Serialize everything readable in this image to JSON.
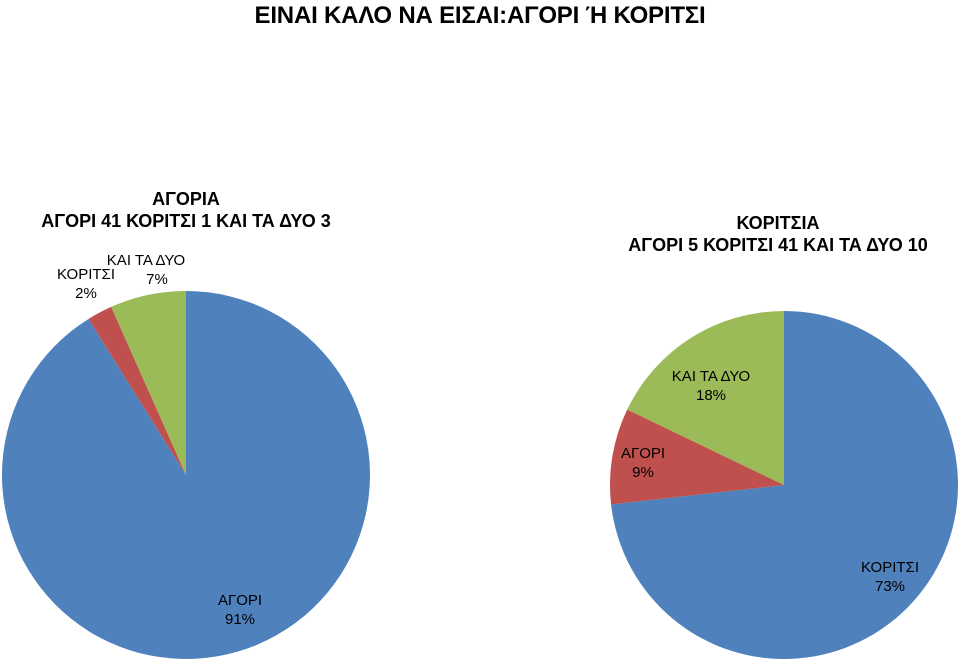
{
  "title": "ΕΙΝΑΙ ΚΑΛΟ ΝΑ ΕΙΣΑΙ:ΑΓΟΡΙ Ή ΚΟΡΙΤΣΙ",
  "colors": {
    "blue": "#4f81bd",
    "red": "#c0504d",
    "green": "#9bbb59"
  },
  "chart_data": [
    {
      "type": "pie",
      "title_line1": "ΑΓΟΡΙΑ",
      "title_line2": "ΑΓΟΡΙ 41 ΚΟΡΙΤΣΙ 1 ΚΑΙ ΤΑ ΔΥΟ 3",
      "slices": [
        {
          "name": "ΑΓΟΡΙ",
          "value": 41,
          "percent_label": "91%",
          "color": "#4f81bd"
        },
        {
          "name": "ΚΟΡΙΤΣΙ",
          "value": 1,
          "percent_label": "2%",
          "color": "#c0504d"
        },
        {
          "name": "ΚΑΙ ΤΑ ΔΥΟ",
          "value": 3,
          "percent_label": "7%",
          "color": "#9bbb59"
        }
      ]
    },
    {
      "type": "pie",
      "title_line1": "ΚΟΡΙΤΣΙΑ",
      "title_line2": "ΑΓΟΡΙ 5 ΚΟΡΙΤΣΙ 41 ΚΑΙ ΤΑ ΔΥΟ 10",
      "slices": [
        {
          "name": "ΚΟΡΙΤΣΙ",
          "value": 41,
          "percent_label": "73%",
          "color": "#4f81bd"
        },
        {
          "name": "ΑΓΟΡΙ",
          "value": 5,
          "percent_label": "9%",
          "color": "#c0504d"
        },
        {
          "name": "ΚΑΙ ΤΑ ΔΥΟ",
          "value": 10,
          "percent_label": "18%",
          "color": "#9bbb59"
        }
      ]
    }
  ]
}
